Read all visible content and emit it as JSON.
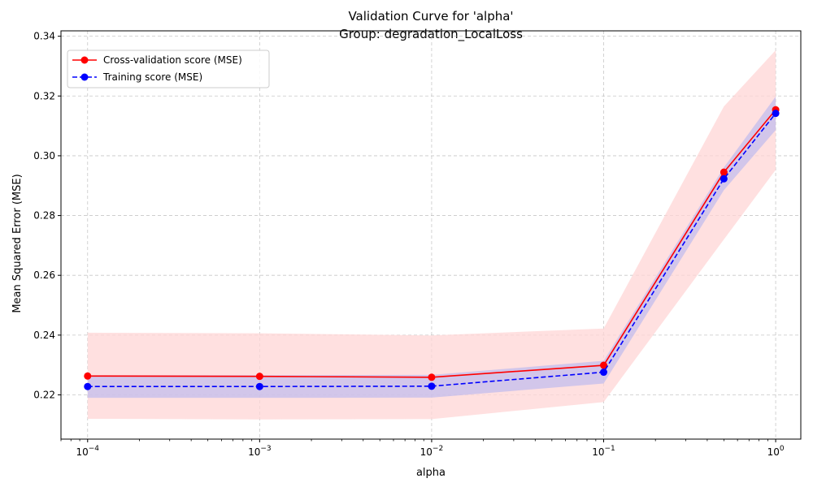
{
  "chart_data": {
    "type": "line",
    "title": "Validation Curve for 'alpha'",
    "subtitle": "Group: degradation_LocalLoss",
    "xlabel": "alpha",
    "ylabel": "Mean Squared Error (MSE)",
    "xscale": "log",
    "xlim": [
      7e-05,
      1.4
    ],
    "ylim": [
      0.2052,
      0.3418
    ],
    "x": [
      0.0001,
      0.001,
      0.01,
      0.1,
      0.5,
      1.0
    ],
    "x_ticks": [
      {
        "value": 0.0001,
        "base": "10",
        "exp": "−4"
      },
      {
        "value": 0.001,
        "base": "10",
        "exp": "−3"
      },
      {
        "value": 0.01,
        "base": "10",
        "exp": "−2"
      },
      {
        "value": 0.1,
        "base": "10",
        "exp": "−1"
      },
      {
        "value": 1.0,
        "base": "10",
        "exp": "0"
      }
    ],
    "y_ticks": [
      0.22,
      0.24,
      0.26,
      0.28,
      0.3,
      0.32,
      0.34
    ],
    "y_tick_labels": [
      "0.22",
      "0.24",
      "0.26",
      "0.28",
      "0.30",
      "0.32",
      "0.34"
    ],
    "grid": true,
    "legend_position": "top-left",
    "series": [
      {
        "name": "Cross-validation score (MSE)",
        "values": [
          0.2263,
          0.2262,
          0.2259,
          0.2299,
          0.2945,
          0.3154
        ],
        "band_low": [
          0.212,
          0.2118,
          0.2119,
          0.2176,
          0.272,
          0.2953
        ],
        "band_high": [
          0.2408,
          0.2406,
          0.2399,
          0.2422,
          0.3165,
          0.3353
        ],
        "color": "#ff0000",
        "band_color": "#ffd6d6",
        "line_style": "solid"
      },
      {
        "name": "Training score (MSE)",
        "values": [
          0.2228,
          0.2228,
          0.2229,
          0.2276,
          0.2923,
          0.3142
        ],
        "band_low": [
          0.219,
          0.219,
          0.2191,
          0.2238,
          0.2885,
          0.3086
        ],
        "band_high": [
          0.2266,
          0.2266,
          0.2267,
          0.2314,
          0.2961,
          0.3198
        ],
        "color": "#0000ff",
        "band_color": "#b4b4f0",
        "line_style": "dashed"
      }
    ]
  }
}
